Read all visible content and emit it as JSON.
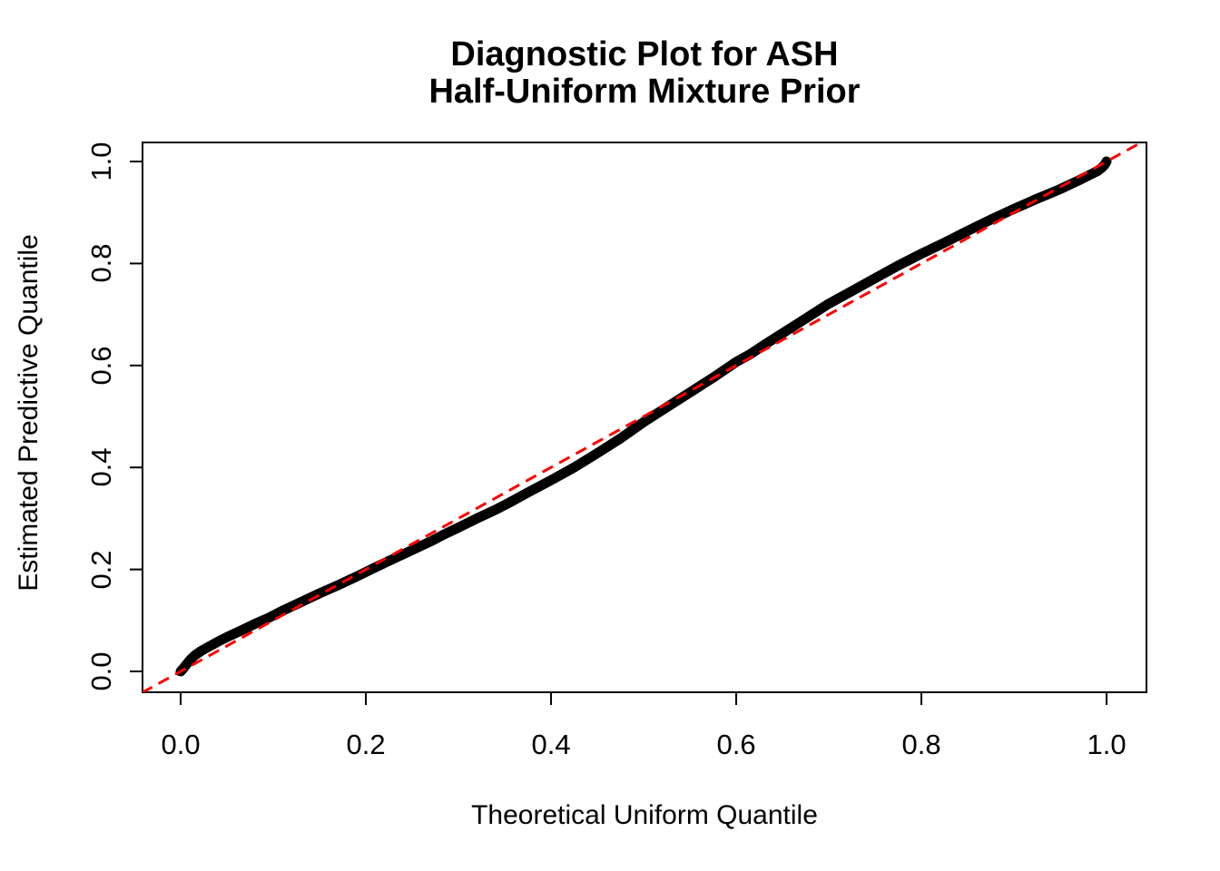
{
  "figure": {
    "title_line1": "Diagnostic Plot for ASH",
    "title_line2": "Half-Uniform Mixture Prior",
    "xlabel": "Theoretical Uniform Quantile",
    "ylabel": "Estimated Predictive Quantile"
  },
  "colors": {
    "curve": "#000000",
    "reference_line": "#ff0000",
    "axis": "#000000",
    "background": "#ffffff"
  },
  "chart_data": {
    "type": "scatter",
    "title": "Diagnostic Plot for ASH\nHalf-Uniform Mixture Prior",
    "xlabel": "Theoretical Uniform Quantile",
    "ylabel": "Estimated Predictive Quantile",
    "grid": false,
    "legend": "none",
    "xlim": [
      -0.0412,
      1.0431
    ],
    "ylim": [
      -0.0409,
      1.0374
    ],
    "x_ticks": [
      {
        "value": 0.0,
        "label": "0.0"
      },
      {
        "value": 0.2,
        "label": "0.2"
      },
      {
        "value": 0.4,
        "label": "0.4"
      },
      {
        "value": 0.6,
        "label": "0.6"
      },
      {
        "value": 0.8,
        "label": "0.8"
      },
      {
        "value": 1.0,
        "label": "1.0"
      }
    ],
    "y_ticks": [
      {
        "value": 0.0,
        "label": "0.0"
      },
      {
        "value": 0.2,
        "label": "0.2"
      },
      {
        "value": 0.4,
        "label": "0.4"
      },
      {
        "value": 0.6,
        "label": "0.6"
      },
      {
        "value": 0.8,
        "label": "0.8"
      },
      {
        "value": 1.0,
        "label": "1.0"
      }
    ],
    "series": [
      {
        "name": "estimated-predictive-quantiles",
        "style": "thick-point-curve",
        "color": "#000000",
        "points": [
          [
            0.0,
            0.0
          ],
          [
            0.003,
            0.006
          ],
          [
            0.006,
            0.013
          ],
          [
            0.01,
            0.022
          ],
          [
            0.015,
            0.031
          ],
          [
            0.022,
            0.04
          ],
          [
            0.03,
            0.048
          ],
          [
            0.04,
            0.058
          ],
          [
            0.052,
            0.069
          ],
          [
            0.065,
            0.08
          ],
          [
            0.08,
            0.093
          ],
          [
            0.095,
            0.105
          ],
          [
            0.11,
            0.119
          ],
          [
            0.13,
            0.136
          ],
          [
            0.15,
            0.153
          ],
          [
            0.17,
            0.169
          ],
          [
            0.19,
            0.186
          ],
          [
            0.21,
            0.204
          ],
          [
            0.23,
            0.221
          ],
          [
            0.25,
            0.238
          ],
          [
            0.27,
            0.255
          ],
          [
            0.285,
            0.269
          ],
          [
            0.3,
            0.282
          ],
          [
            0.32,
            0.3
          ],
          [
            0.34,
            0.317
          ],
          [
            0.355,
            0.331
          ],
          [
            0.375,
            0.351
          ],
          [
            0.4,
            0.375
          ],
          [
            0.425,
            0.4
          ],
          [
            0.45,
            0.428
          ],
          [
            0.475,
            0.457
          ],
          [
            0.5,
            0.489
          ],
          [
            0.525,
            0.518
          ],
          [
            0.55,
            0.547
          ],
          [
            0.575,
            0.576
          ],
          [
            0.6,
            0.607
          ],
          [
            0.615,
            0.622
          ],
          [
            0.63,
            0.64
          ],
          [
            0.65,
            0.663
          ],
          [
            0.675,
            0.692
          ],
          [
            0.7,
            0.721
          ],
          [
            0.725,
            0.746
          ],
          [
            0.75,
            0.771
          ],
          [
            0.775,
            0.796
          ],
          [
            0.8,
            0.819
          ],
          [
            0.825,
            0.841
          ],
          [
            0.85,
            0.864
          ],
          [
            0.875,
            0.886
          ],
          [
            0.9,
            0.907
          ],
          [
            0.925,
            0.927
          ],
          [
            0.95,
            0.946
          ],
          [
            0.97,
            0.963
          ],
          [
            0.982,
            0.974
          ],
          [
            0.99,
            0.981
          ],
          [
            0.995,
            0.988
          ],
          [
            0.998,
            0.994
          ],
          [
            1.0,
            1.0
          ]
        ]
      },
      {
        "name": "identity-reference-line",
        "style": "dashed-line",
        "color": "#ff0000",
        "points": [
          [
            -0.06,
            -0.06
          ],
          [
            1.06,
            1.06
          ]
        ]
      }
    ]
  }
}
